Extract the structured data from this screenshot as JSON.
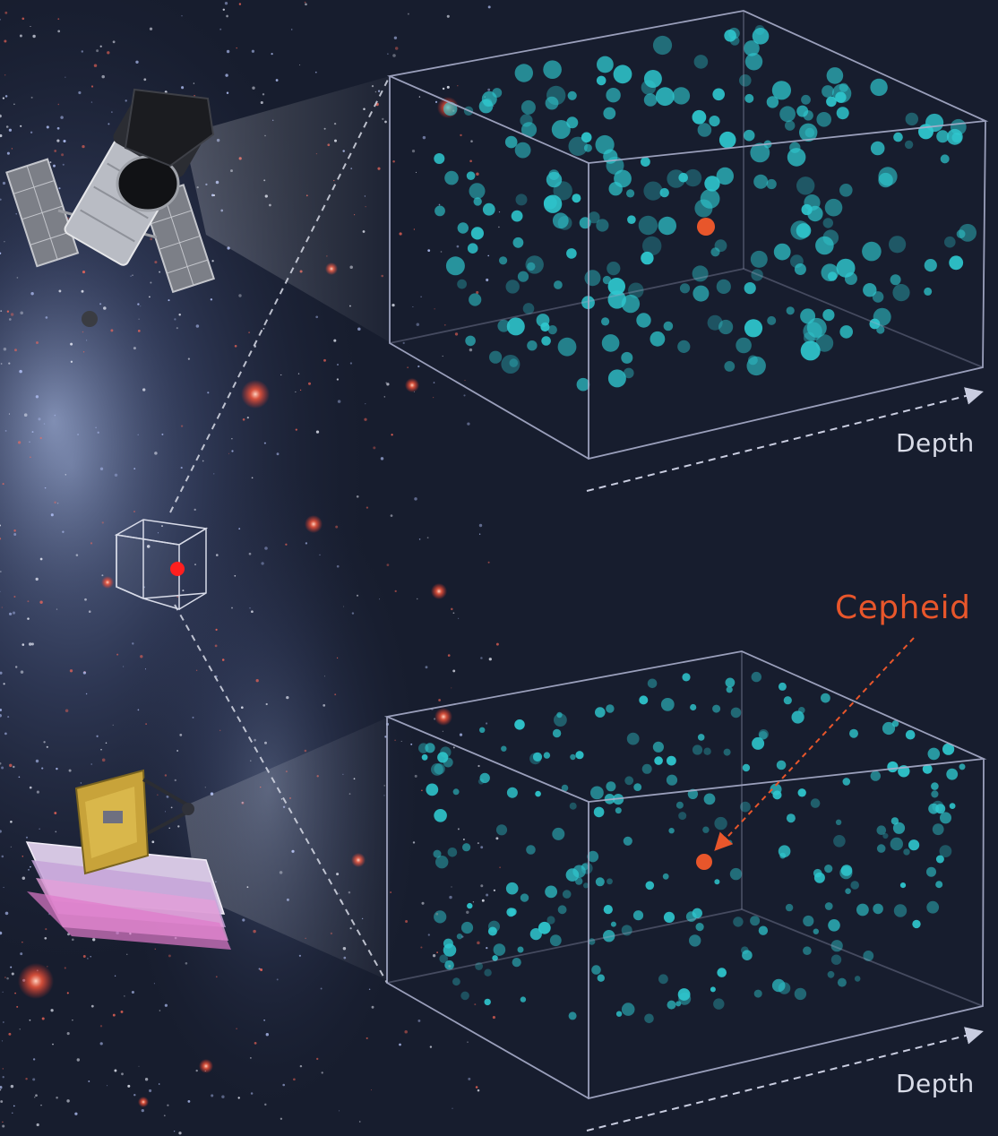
{
  "labels": {
    "depth_top": "Depth",
    "depth_bottom": "Depth",
    "cepheid": "Cepheid"
  },
  "colors": {
    "background": "#171d2e",
    "star_field_dots": "#2fc8cf",
    "cepheid_marker": "#e8562b",
    "box_edges": "#a9aecb",
    "galaxy_core": "#8fa4d6"
  },
  "icons": {
    "top_telescope": "hubble-telescope-icon",
    "bottom_telescope": "webb-telescope-icon",
    "source_region": "region-cube-icon"
  }
}
